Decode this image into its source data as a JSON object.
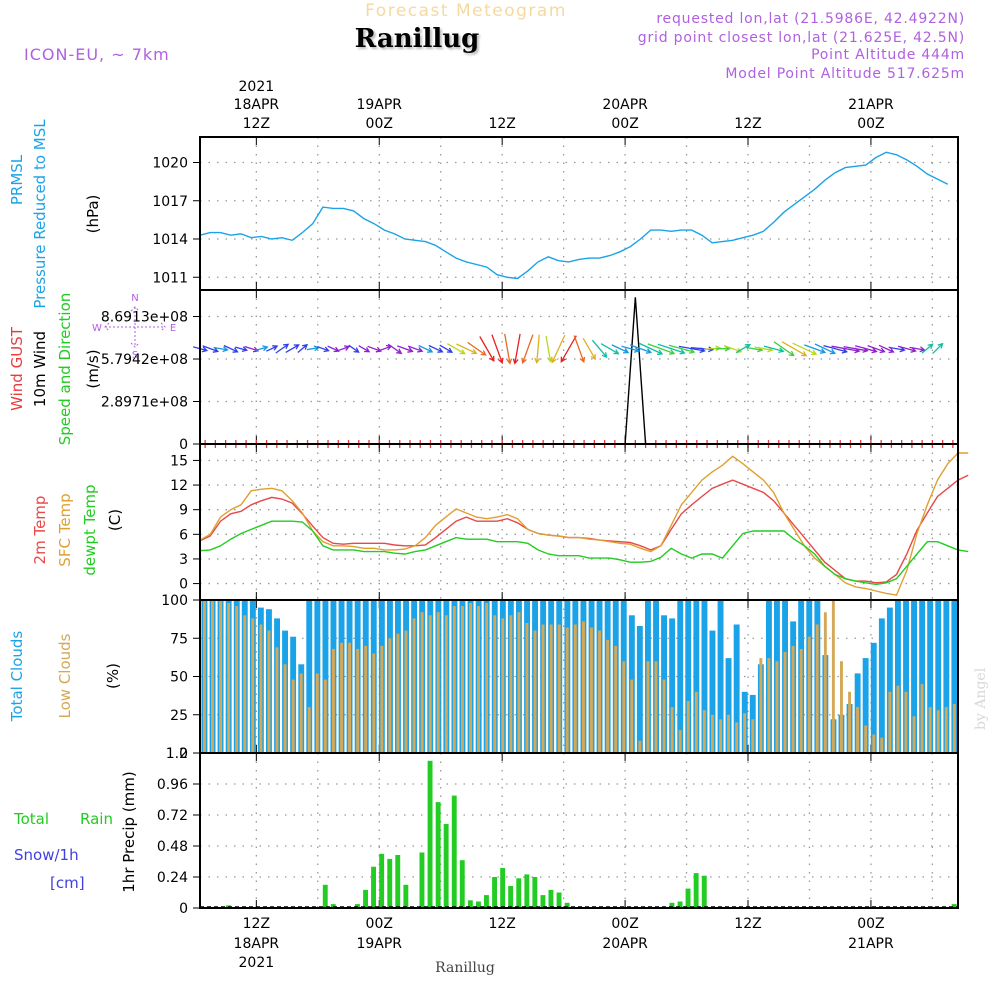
{
  "header": {
    "supertitle": "Forecast Meteogram",
    "title": "Ranillug",
    "model": "ICON-EU, ~ 7km",
    "requested": "requested lon,lat (21.5986E, 42.4922N)",
    "grid_point": "grid point closest lon,lat (21.625E, 42.5N)",
    "point_altitude": "Point Altitude 444m",
    "model_altitude": "Model Point Altitude 517.625m"
  },
  "time_axis": {
    "top_year": "2021",
    "ticks": [
      {
        "hour": 0,
        "hour_label": "12Z",
        "date_label": "18APR"
      },
      {
        "hour": 12,
        "hour_label": "00Z",
        "date_label": "19APR"
      },
      {
        "hour": 24,
        "hour_label": "12Z",
        "date_label": ""
      },
      {
        "hour": 36,
        "hour_label": "00Z",
        "date_label": "20APR"
      },
      {
        "hour": 48,
        "hour_label": "12Z",
        "date_label": ""
      },
      {
        "hour": 60,
        "hour_label": "00Z",
        "date_label": "21APR"
      }
    ],
    "bottom_year": "2021",
    "footer": "Ranillug"
  },
  "watermark": "by Angel",
  "colors": {
    "pressure": "#1aa3e8",
    "gust": "#e83c3c",
    "temp": "#e84848",
    "sfc": "#e0a030",
    "dewpt": "#22cc22",
    "total_clouds": "#1aa3e8",
    "low_clouds": "#d4a856",
    "rain": "#22cc22",
    "purple": "#b060e0",
    "snow": "#4040e0"
  },
  "chart_data": [
    {
      "type": "line",
      "panel": "pressure",
      "label_lines": [
        "PRMSL",
        "Pressure Reduced to MSL"
      ],
      "ylabel": "(hPa)",
      "yticks": [
        1011,
        1014,
        1017,
        1020
      ],
      "ylim": [
        1010,
        1022
      ],
      "x_start": -5.5,
      "x_step": 1,
      "series": [
        {
          "name": "PRMSL",
          "values": [
            1014.3,
            1014.5,
            1014.5,
            1014.3,
            1014.4,
            1014.1,
            1014.2,
            1014.0,
            1014.1,
            1013.9,
            1014.5,
            1015.2,
            1016.5,
            1016.4,
            1016.4,
            1016.2,
            1015.6,
            1015.2,
            1014.7,
            1014.4,
            1014.0,
            1013.9,
            1013.8,
            1013.5,
            1013.0,
            1012.5,
            1012.2,
            1012.0,
            1011.8,
            1011.2,
            1011.0,
            1010.9,
            1011.5,
            1012.2,
            1012.6,
            1012.3,
            1012.2,
            1012.4,
            1012.5,
            1012.5,
            1012.7,
            1013.0,
            1013.4,
            1014.0,
            1014.7,
            1014.7,
            1014.6,
            1014.7,
            1014.7,
            1014.3,
            1013.7,
            1013.8,
            1013.9,
            1014.1,
            1014.3,
            1014.6,
            1015.3,
            1016.1,
            1016.7,
            1017.3,
            1017.9,
            1018.6,
            1019.2,
            1019.6,
            1019.7,
            1019.8,
            1020.4,
            1020.8,
            1020.6,
            1020.2,
            1019.7,
            1019.1,
            1018.7,
            1018.3
          ]
        }
      ]
    },
    {
      "type": "line",
      "panel": "wind",
      "label_lines": [
        "Wind GUST",
        "10m Wind",
        "Speed and Direction"
      ],
      "ylabel": "(m/s)",
      "ytick_labels": [
        "0",
        "2.8971e+08",
        "5.7942e+08",
        "8.6913e+08"
      ],
      "yticks": [
        0,
        289710000,
        579420000,
        869130000
      ],
      "ylim": [
        0,
        1050000000
      ],
      "compass": {
        "n": "N",
        "s": "S",
        "w": "W",
        "e": "E"
      },
      "gust_spike": {
        "x": [
          36,
          37,
          38
        ],
        "values": [
          0,
          1000000000,
          0
        ]
      },
      "wind_arrows": {
        "x_start": -5.5,
        "x_step": 1,
        "angle_deg": [
          15,
          20,
          10,
          25,
          15,
          18,
          -15,
          -25,
          -35,
          -30,
          -40,
          -10,
          20,
          25,
          -20,
          35,
          30,
          20,
          -20,
          35,
          20,
          20,
          25,
          25,
          30,
          30,
          25,
          35,
          60,
          70,
          80,
          100,
          110,
          95,
          80,
          115,
          120,
          70,
          60,
          50,
          30,
          25,
          15,
          20,
          25,
          20,
          18,
          15,
          10,
          5,
          -5,
          0,
          20,
          -30,
          10,
          10,
          15,
          35,
          30,
          25,
          20,
          25,
          15,
          10,
          10,
          15,
          20,
          25,
          10,
          15,
          10,
          -40,
          -45
        ],
        "length": [
          14,
          16,
          14,
          15,
          12,
          14,
          12,
          12,
          15,
          15,
          12,
          12,
          12,
          12,
          12,
          12,
          12,
          14,
          14,
          16,
          16,
          15,
          15,
          15,
          14,
          20,
          22,
          22,
          28,
          30,
          30,
          30,
          30,
          28,
          26,
          30,
          30,
          28,
          24,
          22,
          20,
          18,
          18,
          22,
          25,
          28,
          28,
          26,
          26,
          22,
          16,
          14,
          18,
          16,
          18,
          18,
          20,
          24,
          28,
          26,
          22,
          22,
          24,
          28,
          24,
          22,
          18,
          16,
          16,
          18,
          15,
          14,
          14
        ],
        "color_index": [
          7,
          7,
          6,
          7,
          7,
          8,
          6,
          7,
          7,
          7,
          7,
          6,
          7,
          8,
          8,
          7,
          8,
          8,
          8,
          8,
          8,
          8,
          6,
          7,
          7,
          3,
          2,
          1,
          0,
          0,
          1,
          0,
          1,
          2,
          3,
          2,
          0,
          1,
          2,
          5,
          5,
          6,
          6,
          6,
          5,
          4,
          5,
          4,
          7,
          7,
          3,
          4,
          3,
          5,
          4,
          3,
          5,
          4,
          2,
          3,
          6,
          6,
          7,
          8,
          8,
          8,
          8,
          8,
          7,
          8,
          8,
          5,
          5
        ]
      }
    },
    {
      "type": "line",
      "panel": "temperature",
      "label_lines": [
        "2m Temp",
        "SFC Temp",
        "dewpt Temp"
      ],
      "ylabel": "(C)",
      "yticks": [
        0,
        3,
        6,
        9,
        12,
        15
      ],
      "ylim": [
        -2,
        17
      ],
      "x_start": -5.5,
      "x_step": 1,
      "series": [
        {
          "name": "2m Temp",
          "values": [
            5.2,
            5.8,
            7.6,
            8.5,
            8.8,
            9.6,
            10.1,
            10.5,
            10.3,
            9.8,
            8.5,
            7.0,
            5.6,
            4.9,
            4.8,
            4.9,
            4.9,
            4.9,
            4.9,
            4.7,
            4.6,
            4.6,
            4.7,
            5.6,
            6.6,
            7.6,
            8.1,
            7.6,
            7.6,
            7.6,
            7.9,
            7.4,
            6.6,
            6.1,
            5.9,
            5.8,
            5.6,
            5.6,
            5.5,
            5.3,
            5.2,
            5.1,
            5.0,
            4.6,
            4.1,
            4.6,
            6.6,
            8.5,
            9.6,
            10.6,
            11.6,
            12.1,
            12.6,
            12.1,
            11.6,
            11.1,
            10.1,
            8.6,
            7.1,
            5.6,
            4.1,
            2.6,
            1.6,
            0.6,
            0.3,
            0.3,
            0.1,
            0.2,
            1.1,
            3.6,
            6.5,
            8.6,
            10.6,
            11.6,
            12.6,
            13.2
          ]
        },
        {
          "name": "SFC Temp",
          "values": [
            5.3,
            6.0,
            8.1,
            9.0,
            9.6,
            11.3,
            11.5,
            11.6,
            11.3,
            10.1,
            8.6,
            6.4,
            5.1,
            4.6,
            4.6,
            4.5,
            4.3,
            4.3,
            4.1,
            4.1,
            4.2,
            4.6,
            5.6,
            7.1,
            8.1,
            9.1,
            8.6,
            8.1,
            7.9,
            8.1,
            8.4,
            7.9,
            6.6,
            6.1,
            5.9,
            5.8,
            5.6,
            5.6,
            5.4,
            5.3,
            5.1,
            4.9,
            4.8,
            4.3,
            3.9,
            4.6,
            7.1,
            9.6,
            11.1,
            12.6,
            13.6,
            14.4,
            15.5,
            14.6,
            13.6,
            12.6,
            11.1,
            8.6,
            6.6,
            4.6,
            3.1,
            2.1,
            1.1,
            0.1,
            -0.4,
            -0.6,
            -0.9,
            -1.2,
            -1.4,
            1.6,
            6.1,
            9.6,
            12.6,
            14.6,
            15.9,
            15.9
          ]
        },
        {
          "name": "dewpt Temp",
          "values": [
            4.0,
            4.1,
            4.6,
            5.4,
            6.1,
            6.6,
            7.1,
            7.6,
            7.6,
            7.6,
            7.5,
            6.4,
            4.6,
            4.1,
            4.1,
            4.1,
            3.9,
            3.9,
            3.9,
            3.7,
            3.6,
            3.9,
            4.1,
            4.6,
            5.1,
            5.6,
            5.4,
            5.4,
            5.4,
            5.1,
            5.1,
            5.1,
            4.9,
            4.1,
            3.6,
            3.4,
            3.4,
            3.4,
            3.1,
            3.1,
            3.1,
            2.9,
            2.6,
            2.6,
            2.7,
            3.2,
            4.3,
            3.6,
            3.1,
            3.6,
            3.6,
            3.1,
            4.6,
            6.1,
            6.4,
            6.4,
            6.4,
            6.4,
            5.4,
            4.6,
            3.6,
            2.1,
            1.1,
            0.6,
            0.3,
            0.1,
            -0.1,
            0.1,
            0.6,
            2.1,
            3.6,
            5.1,
            5.1,
            4.6,
            4.1,
            3.9
          ]
        }
      ]
    },
    {
      "type": "bar",
      "panel": "clouds",
      "label_lines": [
        "Total Clouds",
        "Low Clouds"
      ],
      "ylabel": "(%)",
      "yticks": [
        0,
        25,
        50,
        75,
        100
      ],
      "ylim": [
        0,
        100
      ],
      "x_start": -5.5,
      "x_step": 1,
      "series": [
        {
          "name": "Total Clouds",
          "values": [
            100,
            100,
            100,
            100,
            100,
            100,
            100,
            95,
            94,
            88,
            80,
            76,
            58,
            100,
            100,
            100,
            100,
            100,
            100,
            100,
            100,
            100,
            100,
            100,
            100,
            100,
            100,
            100,
            100,
            100,
            100,
            100,
            100,
            100,
            100,
            100,
            100,
            100,
            100,
            100,
            100,
            100,
            100,
            100,
            100,
            100,
            100,
            100,
            100,
            100,
            100,
            100,
            100,
            90,
            83,
            100,
            100,
            90,
            88,
            100,
            100,
            100,
            100,
            80,
            100,
            62,
            84,
            40,
            38,
            58,
            100,
            100,
            100,
            86,
            100,
            100,
            100,
            64,
            22,
            25,
            32,
            52,
            62,
            72,
            88,
            95,
            100,
            100,
            100,
            100,
            100,
            100,
            100,
            100
          ]
        },
        {
          "name": "Low Clouds",
          "values": [
            100,
            100,
            100,
            98,
            96,
            90,
            88,
            84,
            80,
            69,
            58,
            48,
            52,
            30,
            52,
            48,
            68,
            72,
            72,
            68,
            70,
            65,
            70,
            75,
            78,
            80,
            88,
            92,
            90,
            92,
            90,
            96,
            96,
            98,
            96,
            98,
            90,
            88,
            90,
            92,
            85,
            80,
            84,
            84,
            84,
            82,
            84,
            86,
            82,
            80,
            74,
            70,
            60,
            48,
            8,
            60,
            60,
            48,
            30,
            15,
            34,
            40,
            28,
            25,
            22,
            25,
            20,
            26,
            22,
            62,
            62,
            60,
            66,
            70,
            68,
            76,
            84,
            92,
            100,
            60,
            40,
            30,
            18,
            12,
            10,
            40,
            44,
            40,
            24,
            45,
            30,
            28,
            30,
            32
          ]
        }
      ]
    },
    {
      "type": "bar",
      "panel": "precip",
      "label_lines": [
        "1hr Precip (mm)"
      ],
      "left_labels": {
        "total": "Total",
        "rain": "Rain",
        "snow": "Snow/1h",
        "unit": "[cm]"
      },
      "yticks": [
        0,
        0.24,
        0.48,
        0.72,
        0.96,
        1.2
      ],
      "ytick_labels": [
        "0",
        "0.24",
        "0.48",
        "0.72",
        "0.96",
        "1.2"
      ],
      "ylim": [
        0,
        1.2
      ],
      "x_start": -5.5,
      "x_step": 1,
      "series": [
        {
          "name": "Total Rain",
          "values": [
            0,
            0,
            0,
            0.02,
            0,
            0,
            0,
            0,
            0,
            0,
            0,
            0,
            0,
            0,
            0,
            0.18,
            0.03,
            0,
            0,
            0.03,
            0.14,
            0.32,
            0.42,
            0.38,
            0.41,
            0.18,
            0,
            0.43,
            1.14,
            0.82,
            0.65,
            0.87,
            0.37,
            0.06,
            0.05,
            0.1,
            0.24,
            0.31,
            0.17,
            0.23,
            0.26,
            0.24,
            0.1,
            0.14,
            0.12,
            0.04,
            0,
            0,
            0,
            0,
            0,
            0,
            0,
            0,
            0,
            0,
            0,
            0,
            0.04,
            0.05,
            0.15,
            0.27,
            0.25,
            0,
            0,
            0,
            0,
            0,
            0,
            0,
            0,
            0,
            0,
            0,
            0,
            0,
            0,
            0,
            0,
            0,
            0,
            0,
            0,
            0,
            0,
            0,
            0,
            0,
            0,
            0,
            0,
            0,
            0,
            0.03
          ]
        }
      ]
    }
  ]
}
